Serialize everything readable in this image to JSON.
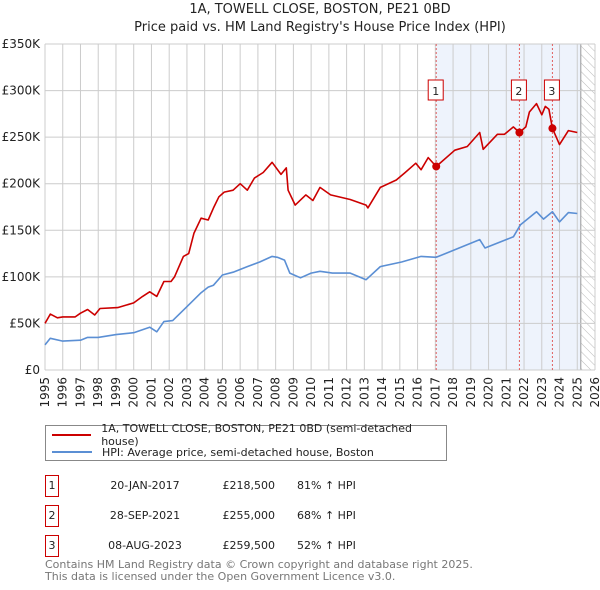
{
  "title": "1A, TOWELL CLOSE, BOSTON, PE21 0BD",
  "subtitle": "Price paid vs. HM Land Registry's House Price Index (HPI)",
  "colors": {
    "property": "#cc0000",
    "hpi": "#5b8fd4",
    "shade": "#eef3fc",
    "marker_border": "#cc0000"
  },
  "chart_data": {
    "type": "line",
    "title": "1A, TOWELL CLOSE, BOSTON, PE21 0BD",
    "xlim": [
      1995,
      2026
    ],
    "ylim": [
      0,
      350000
    ],
    "y_ticks": [
      {
        "v": 0,
        "label": "£0"
      },
      {
        "v": 50000,
        "label": "£50K"
      },
      {
        "v": 100000,
        "label": "£100K"
      },
      {
        "v": 150000,
        "label": "£150K"
      },
      {
        "v": 200000,
        "label": "£200K"
      },
      {
        "v": 250000,
        "label": "£250K"
      },
      {
        "v": 300000,
        "label": "£300K"
      },
      {
        "v": 350000,
        "label": "£350K"
      }
    ],
    "x_ticks": [
      "1995",
      "1996",
      "1997",
      "1998",
      "1999",
      "2000",
      "2001",
      "2002",
      "2003",
      "2004",
      "2005",
      "2006",
      "2007",
      "2008",
      "2009",
      "2010",
      "2011",
      "2012",
      "2013",
      "2014",
      "2015",
      "2016",
      "2017",
      "2018",
      "2019",
      "2020",
      "2021",
      "2022",
      "2023",
      "2024",
      "2025",
      "2026"
    ],
    "grid": true,
    "shaded_range": [
      2017.05,
      2025.2
    ],
    "hatched_range": [
      2025.2,
      2026
    ],
    "series": [
      {
        "name": "1A, TOWELL CLOSE, BOSTON, PE21 0BD (semi-detached house)",
        "unit": "GBP thousands",
        "points": [
          [
            1995.0,
            50
          ],
          [
            1995.3,
            60
          ],
          [
            1995.7,
            56
          ],
          [
            1996.0,
            57
          ],
          [
            1996.7,
            57
          ],
          [
            1997.0,
            61
          ],
          [
            1997.4,
            65
          ],
          [
            1997.8,
            59
          ],
          [
            1998.1,
            66
          ],
          [
            1999.1,
            67
          ],
          [
            2000.0,
            72
          ],
          [
            2000.5,
            79
          ],
          [
            2000.9,
            84
          ],
          [
            2001.3,
            79
          ],
          [
            2001.7,
            95
          ],
          [
            2002.1,
            95
          ],
          [
            2002.3,
            100
          ],
          [
            2002.8,
            122
          ],
          [
            2003.1,
            125
          ],
          [
            2003.4,
            147
          ],
          [
            2003.8,
            163
          ],
          [
            2004.2,
            161
          ],
          [
            2004.5,
            174
          ],
          [
            2004.8,
            186
          ],
          [
            2005.1,
            191
          ],
          [
            2005.6,
            193
          ],
          [
            2006.0,
            200
          ],
          [
            2006.4,
            193
          ],
          [
            2006.8,
            206
          ],
          [
            2007.3,
            212
          ],
          [
            2007.8,
            223
          ],
          [
            2008.3,
            210
          ],
          [
            2008.6,
            217
          ],
          [
            2008.7,
            193
          ],
          [
            2009.1,
            177
          ],
          [
            2009.7,
            188
          ],
          [
            2010.1,
            182
          ],
          [
            2010.5,
            196
          ],
          [
            2011.1,
            188
          ],
          [
            2012.2,
            183
          ],
          [
            2013.1,
            177
          ],
          [
            2013.2,
            174
          ],
          [
            2013.9,
            196
          ],
          [
            2014.8,
            204
          ],
          [
            2015.3,
            212
          ],
          [
            2015.9,
            222
          ],
          [
            2016.2,
            215
          ],
          [
            2016.6,
            228
          ],
          [
            2017.05,
            218.5
          ],
          [
            2018.1,
            236
          ],
          [
            2018.8,
            240
          ],
          [
            2019.5,
            255
          ],
          [
            2019.7,
            237
          ],
          [
            2020.5,
            253
          ],
          [
            2020.9,
            253
          ],
          [
            2021.4,
            261
          ],
          [
            2021.74,
            255
          ],
          [
            2022.1,
            261
          ],
          [
            2022.3,
            277
          ],
          [
            2022.7,
            286
          ],
          [
            2023.0,
            274
          ],
          [
            2023.2,
            283
          ],
          [
            2023.4,
            280
          ],
          [
            2023.6,
            259.5
          ],
          [
            2024.0,
            242
          ],
          [
            2024.5,
            257
          ],
          [
            2025.0,
            255
          ]
        ]
      },
      {
        "name": "HPI: Average price, semi-detached house, Boston",
        "unit": "GBP thousands",
        "points": [
          [
            1995.0,
            27
          ],
          [
            1995.3,
            34
          ],
          [
            1996.0,
            31
          ],
          [
            1997.0,
            32
          ],
          [
            1997.4,
            35
          ],
          [
            1998.0,
            35
          ],
          [
            1999.0,
            38
          ],
          [
            2000.0,
            40
          ],
          [
            2000.9,
            46
          ],
          [
            2001.3,
            41
          ],
          [
            2001.7,
            52
          ],
          [
            2002.2,
            53
          ],
          [
            2003.0,
            68
          ],
          [
            2003.8,
            83
          ],
          [
            2004.2,
            89
          ],
          [
            2004.5,
            91
          ],
          [
            2005.0,
            102
          ],
          [
            2005.6,
            105
          ],
          [
            2006.4,
            111
          ],
          [
            2007.1,
            116
          ],
          [
            2007.8,
            122
          ],
          [
            2008.1,
            121
          ],
          [
            2008.5,
            118
          ],
          [
            2008.8,
            104
          ],
          [
            2009.4,
            99
          ],
          [
            2010.0,
            104
          ],
          [
            2010.5,
            106
          ],
          [
            2011.2,
            104
          ],
          [
            2012.2,
            104
          ],
          [
            2013.1,
            97
          ],
          [
            2013.9,
            111
          ],
          [
            2015.1,
            116
          ],
          [
            2016.2,
            122
          ],
          [
            2017.05,
            121
          ],
          [
            2018.1,
            129
          ],
          [
            2019.5,
            140
          ],
          [
            2019.8,
            131
          ],
          [
            2021.4,
            143
          ],
          [
            2021.8,
            156
          ],
          [
            2022.7,
            170
          ],
          [
            2023.1,
            162
          ],
          [
            2023.6,
            170
          ],
          [
            2024.0,
            159
          ],
          [
            2024.5,
            169
          ],
          [
            2025.0,
            168
          ]
        ]
      }
    ],
    "sales": [
      {
        "label": "1",
        "year": 2017.05,
        "value": 218500
      },
      {
        "label": "2",
        "year": 2021.74,
        "value": 255000
      },
      {
        "label": "3",
        "year": 2023.6,
        "value": 259500
      }
    ]
  },
  "legend": {
    "property": "1A, TOWELL CLOSE, BOSTON, PE21 0BD (semi-detached house)",
    "hpi": "HPI: Average price, semi-detached house, Boston"
  },
  "transactions": [
    {
      "num": "1",
      "date": "20-JAN-2017",
      "price": "£218,500",
      "hpi": "81% ↑ HPI"
    },
    {
      "num": "2",
      "date": "28-SEP-2021",
      "price": "£255,000",
      "hpi": "68% ↑ HPI"
    },
    {
      "num": "3",
      "date": "08-AUG-2023",
      "price": "£259,500",
      "hpi": "52% ↑ HPI"
    }
  ],
  "footer": {
    "line1": "Contains HM Land Registry data © Crown copyright and database right 2025.",
    "line2": "This data is licensed under the Open Government Licence v3.0."
  }
}
